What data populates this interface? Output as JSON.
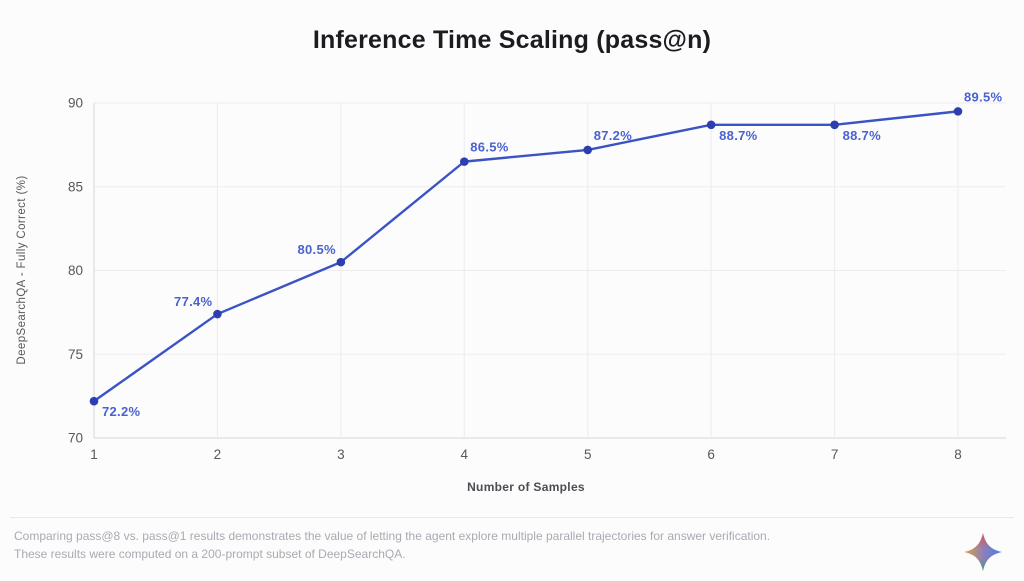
{
  "chart_data": {
    "type": "line",
    "title": "Inference Time Scaling (pass@n)",
    "xlabel": "Number of Samples",
    "ylabel": "DeepSearchQA - Fully Correct (%)",
    "x": [
      1,
      2,
      3,
      4,
      5,
      6,
      7,
      8
    ],
    "values": [
      72.2,
      77.4,
      80.5,
      86.5,
      87.2,
      88.7,
      88.7,
      89.5
    ],
    "labels": [
      "72.2%",
      "77.4%",
      "80.5%",
      "86.5%",
      "87.2%",
      "88.7%",
      "88.7%",
      "89.5%"
    ],
    "label_anchors": [
      "below-right",
      "above-left",
      "above-left",
      "above-right",
      "above-right",
      "below-right",
      "below-right",
      "above-right"
    ],
    "ylim": [
      70,
      90
    ],
    "yticks": [
      70,
      75,
      80,
      85,
      90
    ],
    "grid": true,
    "legend": "none",
    "line_color": "#3a53c5",
    "marker_color": "#2d3eb0",
    "label_color": "#4a62cf",
    "grid_color": "#ededf1",
    "axis_color": "#d4d6da",
    "tick_color": "#56585c"
  },
  "footer": {
    "line1": "Comparing pass@8 vs. pass@1 results demonstrates the value of letting the agent explore multiple parallel trajectories for answer verification.",
    "line2": "These results were computed on a 200-prompt subset of DeepSearchQA.",
    "logo": "gemini-sparkle-icon"
  }
}
